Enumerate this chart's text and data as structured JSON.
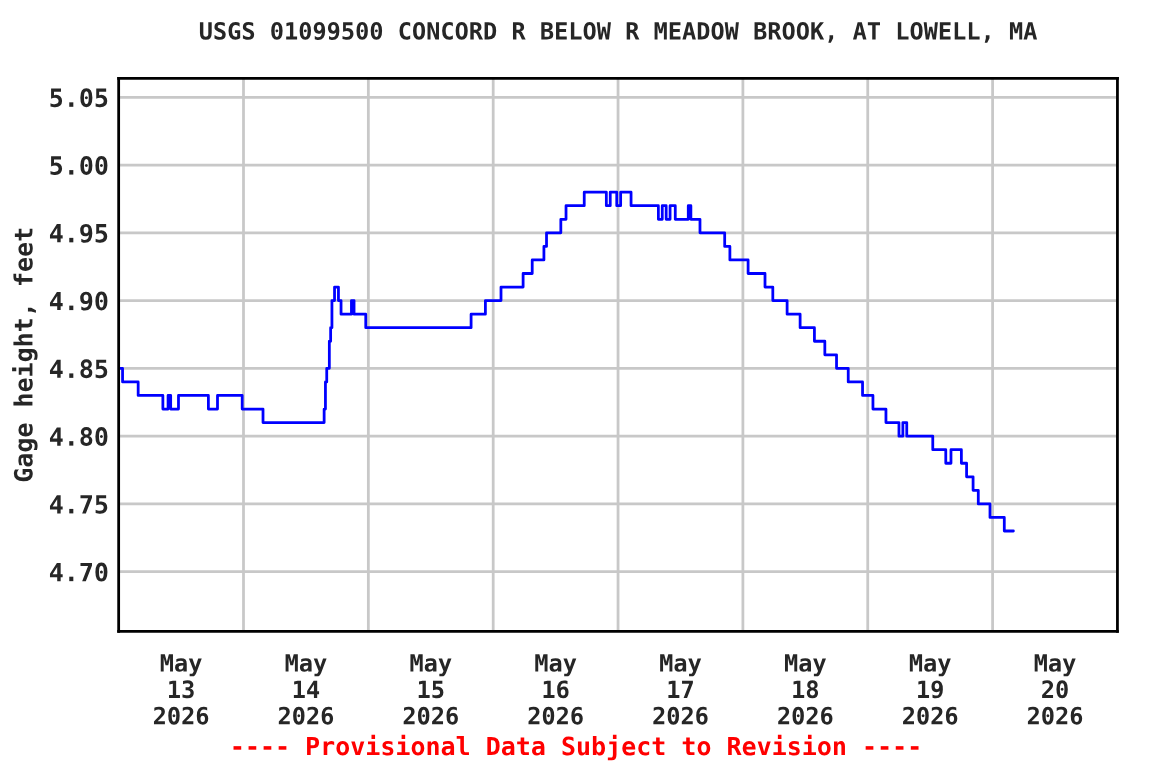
{
  "chart_data": {
    "type": "step",
    "title": "USGS 01099500 CONCORD R BELOW R MEADOW BROOK, AT LOWELL, MA",
    "ylabel": "Gage height, feet",
    "annotations": [
      "---- Provisional Data Subject to Revision ----"
    ],
    "series": [
      {
        "color": "#0000ff",
        "x": [
          "2026-05-13T00:00",
          "2026-05-13T00:45",
          "2026-05-13T03:45",
          "2026-05-13T08:30",
          "2026-05-13T09:30",
          "2026-05-13T10:00",
          "2026-05-13T11:30",
          "2026-05-13T17:15",
          "2026-05-13T19:00",
          "2026-05-13T23:45",
          "2026-05-14T03:45",
          "2026-05-14T15:30",
          "2026-05-14T15:45",
          "2026-05-14T16:00",
          "2026-05-14T16:30",
          "2026-05-14T16:45",
          "2026-05-14T17:00",
          "2026-05-14T17:30",
          "2026-05-14T18:15",
          "2026-05-14T18:45",
          "2026-05-14T20:45",
          "2026-05-14T21:15",
          "2026-05-14T23:30",
          "2026-05-15T19:45",
          "2026-05-15T22:30",
          "2026-05-16T01:30",
          "2026-05-16T05:45",
          "2026-05-16T07:30",
          "2026-05-16T09:45",
          "2026-05-16T10:15",
          "2026-05-16T13:00",
          "2026-05-16T14:00",
          "2026-05-16T17:30",
          "2026-05-16T21:45",
          "2026-05-16T22:30",
          "2026-05-16T23:45",
          "2026-05-17T00:30",
          "2026-05-17T02:30",
          "2026-05-17T07:45",
          "2026-05-17T08:30",
          "2026-05-17T09:15",
          "2026-05-17T10:00",
          "2026-05-17T11:00",
          "2026-05-17T13:30",
          "2026-05-17T14:00",
          "2026-05-17T15:45",
          "2026-05-17T20:30",
          "2026-05-17T21:30",
          "2026-05-18T01:00",
          "2026-05-18T04:15",
          "2026-05-18T05:45",
          "2026-05-18T08:30",
          "2026-05-18T11:00",
          "2026-05-18T13:45",
          "2026-05-18T15:45",
          "2026-05-18T18:00",
          "2026-05-18T20:15",
          "2026-05-18T23:00",
          "2026-05-19T01:00",
          "2026-05-19T03:30",
          "2026-05-19T06:00",
          "2026-05-19T06:45",
          "2026-05-19T07:30",
          "2026-05-19T12:30",
          "2026-05-19T15:00",
          "2026-05-19T16:00",
          "2026-05-19T18:00",
          "2026-05-19T19:00",
          "2026-05-19T20:15",
          "2026-05-19T21:15",
          "2026-05-19T23:30",
          "2026-05-20T02:15",
          "2026-05-20T04:00"
        ],
        "values": [
          4.85,
          4.84,
          4.83,
          4.82,
          4.83,
          4.82,
          4.83,
          4.82,
          4.83,
          4.82,
          4.81,
          4.82,
          4.84,
          4.85,
          4.87,
          4.88,
          4.9,
          4.91,
          4.9,
          4.89,
          4.9,
          4.89,
          4.88,
          4.89,
          4.9,
          4.91,
          4.92,
          4.93,
          4.94,
          4.95,
          4.96,
          4.97,
          4.98,
          4.97,
          4.98,
          4.97,
          4.98,
          4.97,
          4.96,
          4.97,
          4.96,
          4.97,
          4.96,
          4.97,
          4.96,
          4.95,
          4.94,
          4.93,
          4.92,
          4.91,
          4.9,
          4.89,
          4.88,
          4.87,
          4.86,
          4.85,
          4.84,
          4.83,
          4.82,
          4.81,
          4.8,
          4.81,
          4.8,
          4.79,
          4.78,
          4.79,
          4.78,
          4.77,
          4.76,
          4.75,
          4.74,
          4.73,
          4.73
        ]
      }
    ],
    "xlim": [
      "2026-05-13",
      "2026-05-21"
    ],
    "xticks": [
      {
        "value": "2026-05-13",
        "label": null
      },
      {
        "value": "2026-05-14",
        "label": null
      },
      {
        "value": "2026-05-15",
        "label": null
      },
      {
        "value": "2026-05-16",
        "label": null
      },
      {
        "value": "2026-05-17",
        "label": null
      },
      {
        "value": "2026-05-18",
        "label": null
      },
      {
        "value": "2026-05-19",
        "label": null
      },
      {
        "value": "2026-05-20",
        "label": null
      },
      {
        "value": "2026-05-21",
        "label": null
      },
      {
        "value": "2026-05-13T12:00",
        "label": "May\n13\n2026"
      },
      {
        "value": "2026-05-14T12:00",
        "label": "May\n14\n2026"
      },
      {
        "value": "2026-05-15T12:00",
        "label": "May\n15\n2026"
      },
      {
        "value": "2026-05-16T12:00",
        "label": "May\n16\n2026"
      },
      {
        "value": "2026-05-17T12:00",
        "label": "May\n17\n2026"
      },
      {
        "value": "2026-05-18T12:00",
        "label": "May\n18\n2026"
      },
      {
        "value": "2026-05-19T12:00",
        "label": "May\n19\n2026"
      },
      {
        "value": "2026-05-20T12:00",
        "label": "May\n20\n2026"
      }
    ],
    "ylim": [
      4.656,
      5.064
    ],
    "yticks": [
      {
        "value": 4.7,
        "label": "4.70"
      },
      {
        "value": 4.75,
        "label": "4.75"
      },
      {
        "value": 4.8,
        "label": "4.80"
      },
      {
        "value": 4.85,
        "label": "4.85"
      },
      {
        "value": 4.9,
        "label": "4.90"
      },
      {
        "value": 4.95,
        "label": "4.95"
      },
      {
        "value": 5.0,
        "label": "5.00"
      },
      {
        "value": 5.05,
        "label": "5.05"
      }
    ],
    "grid": true,
    "legend": false
  }
}
